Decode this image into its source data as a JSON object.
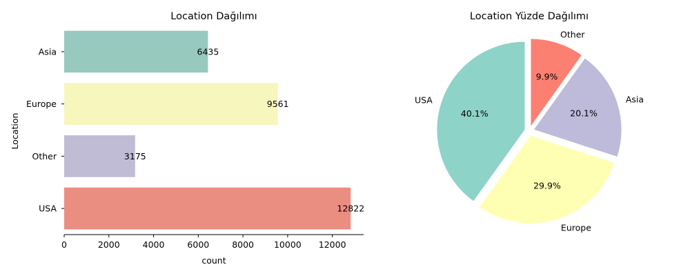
{
  "chart_data": [
    {
      "type": "bar",
      "orientation": "horizontal",
      "title": "Location Dağılımı",
      "xlabel": "count",
      "ylabel": "Location",
      "categories": [
        "Asia",
        "Europe",
        "Other",
        "USA"
      ],
      "values": [
        6435,
        9561,
        3175,
        12822
      ],
      "value_labels": [
        "6435",
        "9561",
        "3175",
        "12822"
      ],
      "colors": [
        "#97c9bf",
        "#f6f6bd",
        "#c0bcd5",
        "#ea8e82"
      ],
      "xlim": [
        0,
        13400
      ],
      "xticks": [
        0,
        2000,
        4000,
        6000,
        8000,
        10000,
        12000
      ],
      "xtick_labels": [
        "0",
        "2000",
        "4000",
        "6000",
        "8000",
        "10000",
        "12000"
      ],
      "grid": false
    },
    {
      "type": "pie",
      "title": "Location Yüzde Dağılımı",
      "labels": [
        "USA",
        "Europe",
        "Asia",
        "Other"
      ],
      "values": [
        40.1,
        29.9,
        20.1,
        9.9
      ],
      "pct_labels": [
        "40.1%",
        "29.9%",
        "20.1%",
        "9.9%"
      ],
      "colors": [
        "#8dd3c7",
        "#ffffb3",
        "#bebada",
        "#fb8072"
      ],
      "exploded": true,
      "start_angle_deg": 90,
      "direction": "counterclockwise"
    }
  ]
}
